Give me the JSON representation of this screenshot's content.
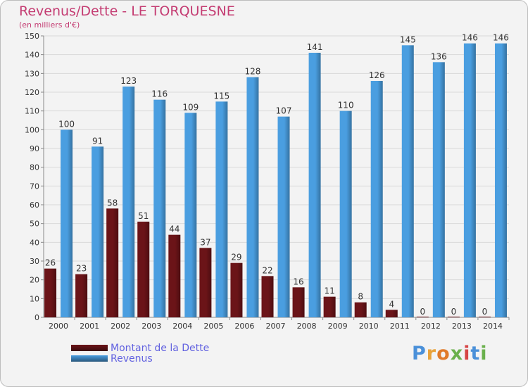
{
  "header": {
    "title": "Revenus/Dette - LE TORQUESNE",
    "subtitle": "(en milliers d'€)"
  },
  "legend": {
    "items": [
      {
        "label": "Montant de la Dette",
        "color": "#6b1418"
      },
      {
        "label": "Revenus",
        "color": "#4a9ee0"
      }
    ]
  },
  "logo": {
    "text": "Proxiti"
  },
  "chart_data": {
    "type": "bar",
    "title": "Revenus/Dette - LE TORQUESNE",
    "subtitle": "(en milliers d'€)",
    "xlabel": "",
    "ylabel": "",
    "ylim": [
      0,
      150
    ],
    "yticks": [
      0,
      10,
      20,
      30,
      40,
      50,
      60,
      70,
      80,
      90,
      100,
      110,
      120,
      130,
      140,
      150
    ],
    "grid": true,
    "legend_position": "bottom-left",
    "categories": [
      "2000",
      "2001",
      "2002",
      "2003",
      "2004",
      "2005",
      "2006",
      "2007",
      "2008",
      "2009",
      "2010",
      "2011",
      "2012",
      "2013",
      "2014"
    ],
    "series": [
      {
        "name": "Montant de la Dette",
        "color": "#6b1418",
        "values": [
          26,
          23,
          58,
          51,
          44,
          37,
          29,
          22,
          16,
          11,
          8,
          4,
          0,
          0,
          0
        ]
      },
      {
        "name": "Revenus",
        "color": "#4a9ee0",
        "values": [
          100,
          91,
          123,
          116,
          109,
          115,
          128,
          107,
          141,
          110,
          126,
          145,
          136,
          146,
          146
        ]
      }
    ]
  }
}
